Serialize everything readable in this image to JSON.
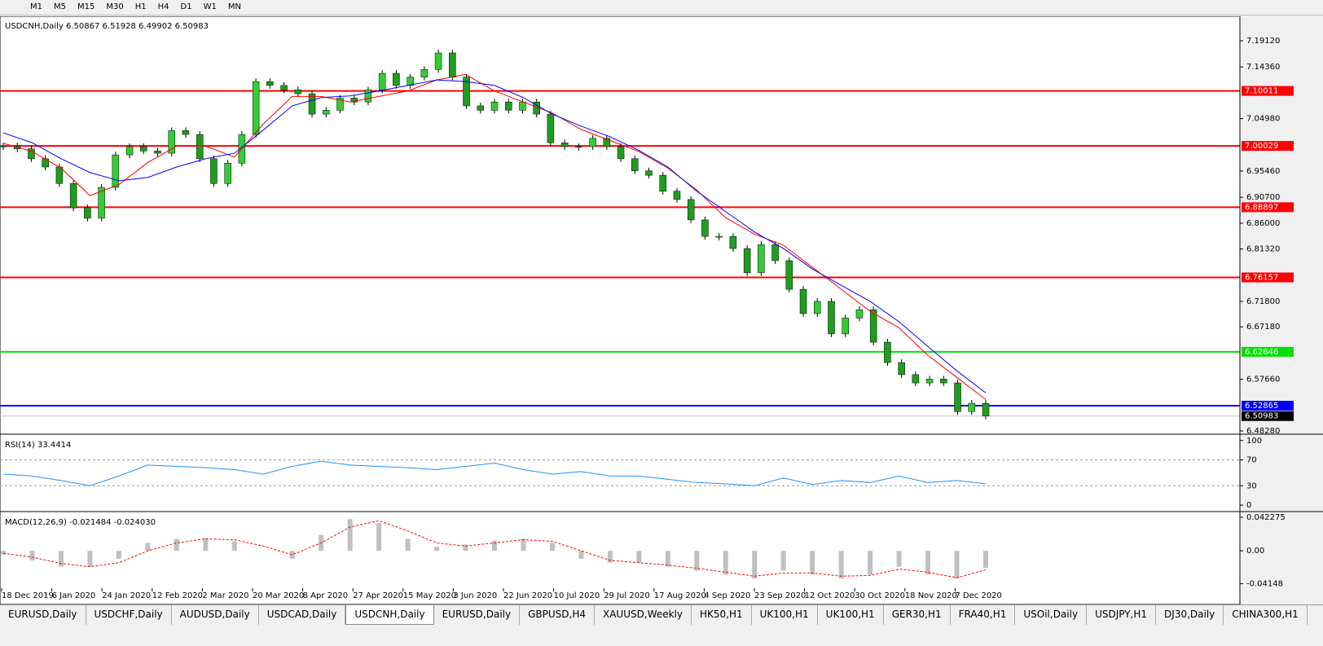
{
  "toolbar": {
    "timeframes": [
      "M1",
      "M5",
      "M15",
      "M30",
      "H1",
      "H4",
      "D1",
      "W1",
      "MN"
    ]
  },
  "tabs": {
    "items": [
      "EURUSD,Daily",
      "USDCHF,Daily",
      "AUDUSD,Daily",
      "USDCAD,Daily",
      "USDCNH,Daily",
      "EURUSD,Daily",
      "GBPUSD,H4",
      "XAUUSD,Weekly",
      "HK50,H1",
      "UK100,H1",
      "UK100,H1",
      "GER30,H1",
      "FRA40,H1",
      "USOil,Daily",
      "USDJPY,H1",
      "DJ30,Daily",
      "CHINA300,H1"
    ],
    "active": 4
  },
  "chart_data": [
    {
      "type": "candlestick",
      "title": "USDCNH,Daily  6.50867 6.51928 6.49902 6.50983",
      "x_labels": [
        "18 Dec 2019",
        "6 Jan 2020",
        "24 Jan 2020",
        "12 Feb 2020",
        "2 Mar 2020",
        "20 Mar 2020",
        "8 Apr 2020",
        "27 Apr 2020",
        "15 May 2020",
        "3 Jun 2020",
        "22 Jun 2020",
        "10 Jul 2020",
        "29 Jul 2020",
        "17 Aug 2020",
        "4 Sep 2020",
        "23 Sep 2020",
        "12 Oct 2020",
        "30 Oct 2020",
        "18 Nov 2020",
        "7 Dec 2020"
      ],
      "values": [
        7.0,
        6.995,
        6.977,
        6.962,
        6.932,
        6.888,
        6.869,
        6.925,
        6.984,
        6.999,
        6.991,
        6.987,
        7.028,
        7.021,
        6.977,
        6.932,
        6.969,
        7.021,
        7.117,
        7.11,
        7.102,
        7.095,
        7.058,
        7.065,
        7.087,
        7.08,
        7.102,
        7.132,
        7.11,
        7.125,
        7.139,
        7.169,
        7.125,
        7.073,
        7.065,
        7.08,
        7.065,
        7.08,
        7.058,
        7.006,
        6.999,
        6.999,
        7.014,
        6.999,
        6.977,
        6.955,
        6.947,
        6.918,
        6.903,
        6.866,
        6.836,
        6.836,
        6.814,
        6.77,
        6.821,
        6.792,
        6.74,
        6.696,
        6.718,
        6.659,
        6.688,
        6.703,
        6.644,
        6.607,
        6.585,
        6.57,
        6.577,
        6.57,
        6.518,
        6.533,
        6.51
      ],
      "up_color": "#32cd32",
      "down_color": "#1e9e1e",
      "series": [
        {
          "color": "#ff0000",
          "values": [
            7.005,
            6.99,
            6.96,
            6.91,
            6.93,
            6.97,
            7.0,
            7.0,
            6.98,
            7.04,
            7.09,
            7.09,
            7.08,
            7.09,
            7.1,
            7.12,
            7.13,
            7.1,
            7.08,
            7.06,
            7.03,
            7.01,
            6.99,
            6.96,
            6.92,
            6.87,
            6.84,
            6.82,
            6.78,
            6.74,
            6.7,
            6.67,
            6.62,
            6.58,
            6.54
          ]
        },
        {
          "color": "#0000ff",
          "values": [
            7.024,
            7.006,
            6.977,
            6.952,
            6.937,
            6.943,
            6.962,
            6.977,
            6.987,
            7.029,
            7.073,
            7.088,
            7.091,
            7.1,
            7.11,
            7.12,
            7.117,
            7.11,
            7.088,
            7.058,
            7.036,
            7.017,
            6.992,
            6.962,
            6.918,
            6.881,
            6.844,
            6.814,
            6.777,
            6.747,
            6.718,
            6.681,
            6.636,
            6.592,
            6.552
          ]
        }
      ],
      "ylim": [
        6.4784,
        7.2326
      ],
      "yticks": [
        {
          "value": 7.1912,
          "label": "7.19120"
        },
        {
          "value": 7.1436,
          "label": "7.14360"
        },
        {
          "value": 7.0498,
          "label": "7.04980"
        },
        {
          "value": 6.9546,
          "label": "6.95460"
        },
        {
          "value": 6.907,
          "label": "6.90700"
        },
        {
          "value": 6.86,
          "label": "6.86000"
        },
        {
          "value": 6.8132,
          "label": "6.81320"
        },
        {
          "value": 6.718,
          "label": "6.71800"
        },
        {
          "value": 6.6718,
          "label": "6.67180"
        },
        {
          "value": 6.5766,
          "label": "6.57660"
        },
        {
          "value": 6.4828,
          "label": "6.48280"
        }
      ],
      "levels": [
        {
          "value": 7.10011,
          "color": "#ff0000"
        },
        {
          "value": 7.00029,
          "color": "#ff0000"
        },
        {
          "value": 6.88897,
          "color": "#ff0000"
        },
        {
          "value": 6.76157,
          "color": "#ff0000"
        },
        {
          "value": 6.62646,
          "color": "#00e000"
        },
        {
          "value": 6.52865,
          "color": "#0000ff"
        },
        {
          "value": 6.50983,
          "color": "#000000"
        }
      ]
    },
    {
      "type": "line",
      "title": "RSI(14) 33.4414",
      "color": "#1e90ff",
      "values": [
        48,
        45,
        38,
        30,
        45,
        62,
        60,
        58,
        55,
        48,
        60,
        68,
        62,
        60,
        58,
        55,
        60,
        65,
        55,
        48,
        52,
        45,
        45,
        40,
        35,
        33,
        30,
        42,
        32,
        38,
        35,
        45,
        35,
        38,
        33
      ],
      "ylim": [
        -10,
        106
      ],
      "yticks": [
        100,
        70,
        30,
        0
      ],
      "levels": [
        70,
        30
      ]
    },
    {
      "type": "macd",
      "title": "MACD(12,26,9) -0.021484 -0.024030",
      "color": "#c0c0c0",
      "signal_color": "#ff0000",
      "values": [
        -0.005,
        -0.012,
        -0.02,
        -0.02,
        -0.01,
        0.01,
        0.015,
        0.016,
        0.012,
        0.0,
        -0.01,
        0.02,
        0.04,
        0.035,
        0.015,
        0.005,
        0.008,
        0.013,
        0.015,
        0.01,
        -0.01,
        -0.015,
        -0.015,
        -0.02,
        -0.025,
        -0.03,
        -0.035,
        -0.025,
        -0.03,
        -0.035,
        -0.03,
        -0.02,
        -0.03,
        -0.035,
        -0.0215
      ],
      "signal": [
        -0.003,
        -0.008,
        -0.016,
        -0.02,
        -0.015,
        0.0,
        0.01,
        0.015,
        0.014,
        0.006,
        -0.005,
        0.01,
        0.03,
        0.038,
        0.025,
        0.01,
        0.006,
        0.01,
        0.014,
        0.012,
        0.0,
        -0.012,
        -0.015,
        -0.018,
        -0.022,
        -0.027,
        -0.032,
        -0.028,
        -0.028,
        -0.032,
        -0.031,
        -0.023,
        -0.027,
        -0.034,
        -0.024
      ],
      "ylim": [
        -0.0471,
        0.0464
      ],
      "yticks": [
        0.042275,
        {
          "value": 0,
          "label": "0.00"
        },
        -0.04148
      ]
    }
  ]
}
